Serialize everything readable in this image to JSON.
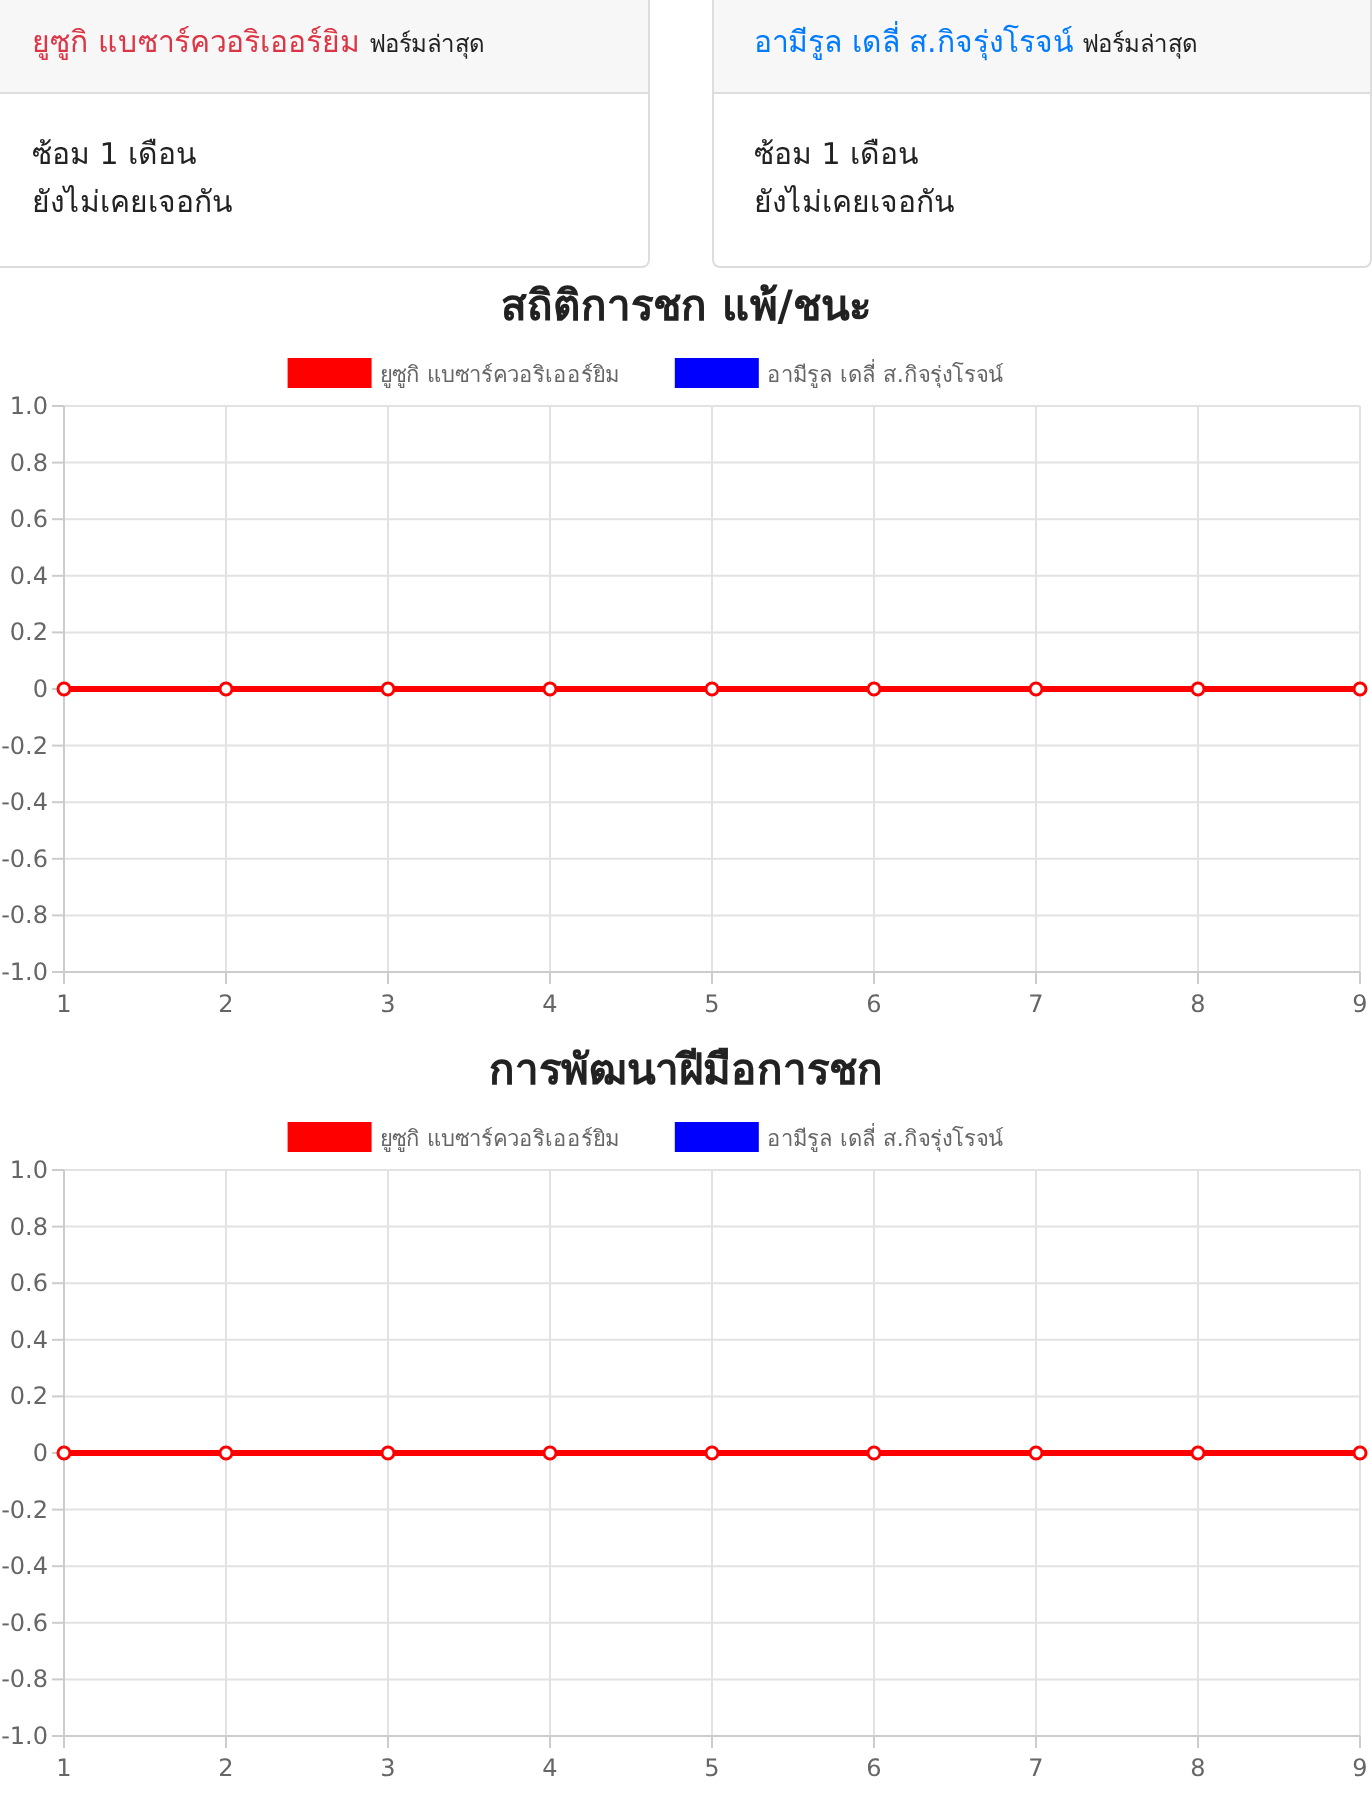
{
  "chart_data": [
    {
      "type": "other",
      "title": "ยูซูกิ แบซาร์ควอริเออร์ยิม",
      "subtitle": "ฟอร์มล่าสุด",
      "color": "#dc3545",
      "annotations": [
        "ซ้อม 1 เดือน",
        "ยังไม่เคยเจอกัน"
      ]
    },
    {
      "type": "other",
      "title": "อามีรูล เดลี่ ส.กิจรุ่งโรจน์",
      "subtitle": "ฟอร์มล่าสุด",
      "color": "#007bff",
      "annotations": [
        "ซ้อม 1 เดือน",
        "ยังไม่เคยเจอกัน"
      ]
    },
    {
      "type": "line",
      "title": "สถิติการชก แพ้/ชนะ",
      "x": [
        1,
        2,
        3,
        4,
        5,
        6,
        7,
        8,
        9
      ],
      "xlim": [
        1,
        9
      ],
      "xticks": [
        1,
        2,
        3,
        4,
        5,
        6,
        7,
        8,
        9
      ],
      "ylim": [
        -1,
        1
      ],
      "yticks": [
        {
          "value": -1,
          "label": "-1.0"
        },
        {
          "value": -0.8,
          "label": "-0.8"
        },
        {
          "value": -0.6,
          "label": "-0.6"
        },
        {
          "value": -0.4,
          "label": "-0.4"
        },
        {
          "value": -0.2,
          "label": "-0.2"
        },
        0,
        {
          "value": 0.2,
          "label": "0.2"
        },
        {
          "value": 0.4,
          "label": "0.4"
        },
        {
          "value": 0.6,
          "label": "0.6"
        },
        {
          "value": 0.8,
          "label": "0.8"
        },
        {
          "value": 1,
          "label": "1.0"
        }
      ],
      "grid": true,
      "legend": "top",
      "marker": "circle",
      "line_style": "solid",
      "series": [
        {
          "name": "ยูซูกิ แบซาร์ควอริเออร์ยิม",
          "color": "#ff0000",
          "values": [
            0,
            0,
            0,
            0,
            0,
            0,
            0,
            0,
            0
          ]
        },
        {
          "name": "อามีรูล เดลี่ ส.กิจรุ่งโรจน์",
          "color": "#0000ff",
          "values": [
            null,
            null,
            null,
            null,
            null,
            null,
            null,
            null,
            null
          ]
        }
      ]
    },
    {
      "type": "line",
      "title": "การพัฒนาฝีมือการชก",
      "x": [
        1,
        2,
        3,
        4,
        5,
        6,
        7,
        8,
        9
      ],
      "xlim": [
        1,
        9
      ],
      "xticks": [
        1,
        2,
        3,
        4,
        5,
        6,
        7,
        8,
        9
      ],
      "ylim": [
        -1,
        1
      ],
      "yticks": [
        {
          "value": -1,
          "label": "-1.0"
        },
        {
          "value": -0.8,
          "label": "-0.8"
        },
        {
          "value": -0.6,
          "label": "-0.6"
        },
        {
          "value": -0.4,
          "label": "-0.4"
        },
        {
          "value": -0.2,
          "label": "-0.2"
        },
        0,
        {
          "value": 0.2,
          "label": "0.2"
        },
        {
          "value": 0.4,
          "label": "0.4"
        },
        {
          "value": 0.6,
          "label": "0.6"
        },
        {
          "value": 0.8,
          "label": "0.8"
        },
        {
          "value": 1,
          "label": "1.0"
        }
      ],
      "grid": true,
      "legend": "top",
      "marker": "circle",
      "line_style": "solid",
      "series": [
        {
          "name": "ยูซูกิ แบซาร์ควอริเออร์ยิม",
          "color": "#ff0000",
          "values": [
            0,
            0,
            0,
            0,
            0,
            0,
            0,
            0,
            0
          ]
        },
        {
          "name": "อามีรูล เดลี่ ส.กิจรุ่งโรจน์",
          "color": "#0000ff",
          "values": [
            null,
            null,
            null,
            null,
            null,
            null,
            null,
            null,
            null
          ]
        }
      ]
    }
  ]
}
